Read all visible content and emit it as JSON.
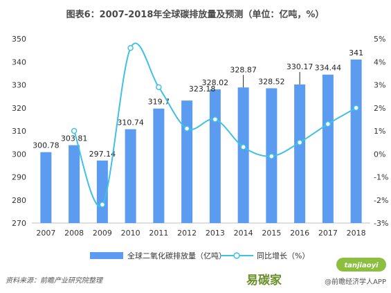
{
  "chart_data": {
    "type": "bar",
    "title": "图表6：2007-2018年全球碳排放量及预测（单位：亿吨，%）",
    "categories": [
      "2007",
      "2008",
      "2009",
      "2010",
      "2011",
      "2012",
      "2013",
      "2014",
      "2015",
      "2016",
      "2017",
      "2018"
    ],
    "series": [
      {
        "name": "全球二氧化碳排放量（亿吨）",
        "type": "bar",
        "axis": "left",
        "values": [
          300.78,
          303.81,
          297.14,
          310.74,
          319.7,
          323.18,
          328.02,
          328.87,
          328.52,
          330.17,
          334.44,
          341
        ],
        "labels": [
          "300.78",
          "303.81",
          "297.14",
          "310.74",
          "319.7",
          "",
          "328.02",
          "328.87",
          "328.52",
          "330.17",
          "334.44",
          "341"
        ]
      },
      {
        "name": "同比增长（%）",
        "type": "line",
        "axis": "right",
        "values": [
          null,
          1.0,
          -2.2,
          4.6,
          2.9,
          1.1,
          1.5,
          0.3,
          -0.1,
          0.5,
          1.3,
          2.0
        ]
      }
    ],
    "extra_label": {
      "text": "323.18",
      "index": 5
    },
    "ylim": [
      270,
      350
    ],
    "yticks": [
      "270",
      "280",
      "290",
      "300",
      "310",
      "320",
      "330",
      "340",
      "350"
    ],
    "y2lim": [
      -3,
      5
    ],
    "y2ticks": [
      "-3%",
      "-2%",
      "-1%",
      "0%",
      "1%",
      "2%",
      "3%",
      "4%",
      "5%"
    ],
    "legend_position": "bottom",
    "grid": false,
    "colors": {
      "bar": "#5b9bf0",
      "line": "#3fc1e3",
      "marker_fill": "#ffffff"
    }
  },
  "footer": {
    "source": "资料来源：前瞻产业研究院整理",
    "watermark_logo": "易碳家",
    "watermark_site": "tanjiaoyi",
    "watermark_app": "@前瞻经济学人APP"
  }
}
